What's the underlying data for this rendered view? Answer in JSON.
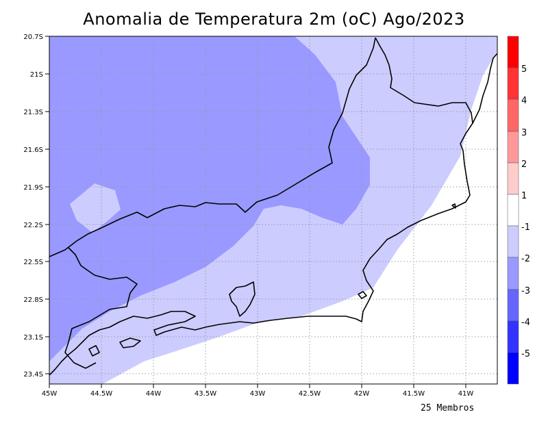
{
  "title": "Anomalia de Temperatura 2m (oC) Ago/2023",
  "members_label": "25 Membros",
  "lat_labels": [
    "20.7S",
    "21S",
    "21.3S",
    "21.6S",
    "21.9S",
    "22.2S",
    "22.5S",
    "22.8S",
    "23.1S",
    "23.4S"
  ],
  "lon_labels": [
    "45W",
    "44.5W",
    "44W",
    "43.5W",
    "43W",
    "42.5W",
    "42W",
    "41.5W",
    "41W"
  ],
  "colorbar": {
    "labels": [
      "5",
      "4",
      "3",
      "2",
      "1",
      "-1",
      "-2",
      "-3",
      "-4",
      "-5"
    ],
    "colors": [
      "#ff0000",
      "#ff3333",
      "#ff6666",
      "#ff9999",
      "#ffcccc",
      "#ffffff",
      "#ccccff",
      "#9999ff",
      "#6666ff",
      "#3333ff",
      "#0000ff"
    ]
  },
  "shading_colors": {
    "class_minus1_to_minus2": "#ccccff",
    "class_minus2_to_minus3": "#9999ff",
    "class_minus1_to_1": "#ffffff"
  },
  "chart_data": {
    "type": "heatmap",
    "title": "Anomalia de Temperatura 2m (oC) Ago/2023",
    "xlabel": "",
    "ylabel": "",
    "lon_range": [
      -45,
      -40.7
    ],
    "lat_range": [
      -23.5,
      -20.7
    ],
    "levels": [
      -5,
      -4,
      -3,
      -2,
      -1,
      1,
      2,
      3,
      4,
      5
    ],
    "visible_classes": [
      "-3 to -2",
      "-2 to -1",
      "-1 to 1"
    ],
    "grid": true
  }
}
